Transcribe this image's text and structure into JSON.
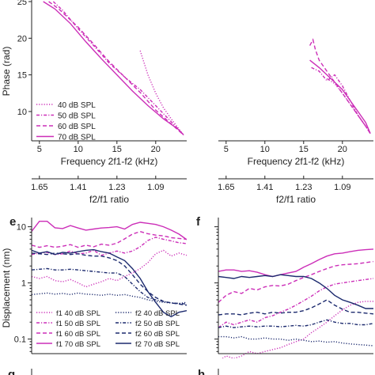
{
  "colors": {
    "magenta": "#cc2eb8",
    "navy": "#1c2a6e",
    "axis": "#222222"
  },
  "chart_data": [
    {
      "panel": "upper-left",
      "type": "line",
      "xlabel": "Frequency 2f1-f2 (kHz)",
      "ylabel": "Phase (rad)",
      "xlim": [
        4,
        24
      ],
      "ylim": [
        6,
        25
      ],
      "xticks": [
        5,
        10,
        15,
        20
      ],
      "yticks": [
        10,
        15,
        20,
        25
      ],
      "secondary_axis": {
        "label": "f2/f1 ratio",
        "ticks": [
          "1.65",
          "1.41",
          "1.23",
          "1.09"
        ],
        "tick_x": [
          5,
          10,
          15,
          20
        ]
      },
      "legend": "lower-left",
      "series": [
        {
          "name": "40 dB SPL",
          "style": "dotted",
          "x": [
            18,
            19,
            20,
            21,
            22,
            23,
            23.6
          ],
          "y": [
            18.3,
            15,
            12.5,
            10.5,
            9,
            7.6,
            6.8
          ]
        },
        {
          "name": "50 dB SPL",
          "style": "dashdot",
          "x": [
            6.8,
            8,
            10,
            12,
            14,
            16,
            18,
            20,
            22,
            23.6
          ],
          "y": [
            25,
            23.8,
            21.3,
            19,
            16.6,
            14.7,
            13,
            10.8,
            8.6,
            6.8
          ]
        },
        {
          "name": "60 dB SPL",
          "style": "dashed",
          "x": [
            6.2,
            7.5,
            10,
            12,
            14,
            16,
            18,
            20,
            22,
            23.6
          ],
          "y": [
            25,
            24,
            21.5,
            19.2,
            16.8,
            14.7,
            12.6,
            10.2,
            8.3,
            6.8
          ]
        },
        {
          "name": "70 dB SPL",
          "style": "solid",
          "x": [
            5.5,
            7,
            9,
            11,
            13,
            15,
            17,
            19,
            21,
            23,
            23.6
          ],
          "y": [
            25,
            24,
            22,
            19.5,
            17.2,
            15,
            12.8,
            10.8,
            9,
            7.5,
            6.8
          ]
        }
      ]
    },
    {
      "panel": "upper-right",
      "type": "line",
      "xlabel": "Frequency 2f1-f2 (kHz)",
      "xlim": [
        4,
        24
      ],
      "ylim": [
        6,
        25
      ],
      "xticks": [
        5,
        10,
        15,
        20
      ],
      "secondary_axis": {
        "label": "f2/f1 ratio",
        "ticks": [
          "1.65",
          "1.41",
          "1.23",
          "1.09"
        ],
        "tick_x": [
          5,
          10,
          15,
          20
        ]
      },
      "series": [
        {
          "name": "40 dB SPL",
          "style": "dotted",
          "x": [
            18,
            19,
            20,
            21,
            22,
            23,
            23.6
          ],
          "y": [
            14.5,
            13.8,
            12.5,
            11,
            9.5,
            8,
            7
          ]
        },
        {
          "name": "50 dB SPL",
          "style": "dashdot",
          "x": [
            16,
            17,
            18,
            19,
            20,
            21,
            22,
            23,
            23.6
          ],
          "y": [
            16,
            15.5,
            14.2,
            15,
            13.5,
            11.5,
            9.5,
            8,
            7
          ]
        },
        {
          "name": "60 dB SPL",
          "style": "dashed",
          "x": [
            15.8,
            16.2,
            16.5,
            17,
            18,
            19,
            20,
            21,
            22,
            23,
            23.6
          ],
          "y": [
            19,
            19.8,
            18.5,
            17,
            15.5,
            14,
            12.5,
            11,
            9.5,
            8,
            7
          ]
        },
        {
          "name": "70 dB SPL",
          "style": "solid",
          "x": [
            15.8,
            17,
            18,
            19,
            20,
            21,
            22,
            23,
            23.6
          ],
          "y": [
            17,
            16,
            15,
            14,
            13,
            11.5,
            10,
            8.5,
            7
          ]
        }
      ]
    },
    {
      "panel": "e",
      "type": "line",
      "ylabel": "Displacement (nm)",
      "yscale": "log",
      "xlim": [
        0,
        1
      ],
      "ylim": [
        0.055,
        12
      ],
      "yticks": [
        0.1,
        1,
        10
      ],
      "ytick_labels": [
        "0.1",
        "1",
        "10"
      ],
      "legend": "bottom",
      "series": [
        {
          "name": "f1 40 dB SPL",
          "color": "magenta",
          "style": "dotted",
          "x": [
            0,
            0.05,
            0.1,
            0.15,
            0.2,
            0.25,
            0.3,
            0.35,
            0.4,
            0.45,
            0.5,
            0.55,
            0.6,
            0.65,
            0.7,
            0.75,
            0.8,
            0.85,
            0.9,
            0.95,
            1
          ],
          "y": [
            1.3,
            1.2,
            1.3,
            1.1,
            1.05,
            1.15,
            1.0,
            0.85,
            0.95,
            1.05,
            1.2,
            1.1,
            1.3,
            1.5,
            1.8,
            2.3,
            3.3,
            3.8,
            3.0,
            3.4,
            3.1
          ]
        },
        {
          "name": "f1 50 dB SPL",
          "color": "magenta",
          "style": "dashdot",
          "x": [
            0,
            0.05,
            0.1,
            0.15,
            0.2,
            0.25,
            0.3,
            0.35,
            0.4,
            0.45,
            0.5,
            0.55,
            0.6,
            0.65,
            0.7,
            0.75,
            0.8,
            0.85,
            0.9,
            0.95,
            1
          ],
          "y": [
            3.2,
            3.4,
            3.5,
            3.2,
            3.3,
            3.7,
            3.3,
            3.4,
            3.8,
            3.1,
            3.4,
            3.7,
            3.4,
            3.7,
            4.4,
            5.7,
            6.5,
            6.0,
            5.6,
            5.2,
            5.0
          ]
        },
        {
          "name": "f1 60 dB SPL",
          "color": "magenta",
          "style": "dashed",
          "x": [
            0,
            0.05,
            0.1,
            0.15,
            0.2,
            0.25,
            0.3,
            0.35,
            0.4,
            0.45,
            0.5,
            0.55,
            0.6,
            0.65,
            0.7,
            0.75,
            0.8,
            0.85,
            0.9,
            0.95,
            1
          ],
          "y": [
            4.7,
            4.3,
            4.6,
            4.3,
            4.5,
            4.8,
            4.3,
            4.7,
            4.4,
            4.9,
            4.7,
            5.1,
            6.1,
            7.4,
            8.2,
            7.5,
            7.1,
            6.9,
            6.4,
            6.2,
            6.0
          ]
        },
        {
          "name": "f1 70 dB SPL",
          "color": "magenta",
          "style": "solid",
          "x": [
            0,
            0.05,
            0.1,
            0.15,
            0.2,
            0.25,
            0.3,
            0.35,
            0.4,
            0.45,
            0.5,
            0.55,
            0.6,
            0.65,
            0.7,
            0.75,
            0.8,
            0.85,
            0.9,
            0.95,
            1
          ],
          "y": [
            8.3,
            12.5,
            12.5,
            9.6,
            9.3,
            10.5,
            9.5,
            8.7,
            9.1,
            9.5,
            9.7,
            10.0,
            9.1,
            11.0,
            12.0,
            11.5,
            11.0,
            10.0,
            8.7,
            7.4,
            5.9
          ]
        },
        {
          "name": "f2 40 dB SPL",
          "color": "navy",
          "style": "dotted",
          "x": [
            0,
            0.05,
            0.1,
            0.15,
            0.2,
            0.25,
            0.3,
            0.35,
            0.4,
            0.45,
            0.5,
            0.55,
            0.6,
            0.65,
            0.7,
            0.75,
            0.8,
            0.85,
            0.9,
            0.95,
            1
          ],
          "y": [
            0.62,
            0.64,
            0.66,
            0.63,
            0.65,
            0.62,
            0.66,
            0.63,
            0.62,
            0.6,
            0.63,
            0.6,
            0.62,
            0.58,
            0.55,
            0.5,
            0.47,
            0.45,
            0.44,
            0.43,
            0.45
          ]
        },
        {
          "name": "f2 50 dB SPL",
          "color": "navy",
          "style": "dashdot",
          "x": [
            0,
            0.05,
            0.1,
            0.15,
            0.2,
            0.25,
            0.3,
            0.35,
            0.4,
            0.45,
            0.5,
            0.55,
            0.6,
            0.65,
            0.7,
            0.75,
            0.8,
            0.85,
            0.9,
            0.95,
            1
          ],
          "y": [
            1.7,
            1.75,
            1.8,
            1.7,
            1.7,
            1.75,
            1.7,
            1.65,
            1.6,
            1.55,
            1.5,
            1.5,
            1.3,
            0.95,
            0.7,
            0.55,
            0.5,
            0.47,
            0.44,
            0.43,
            0.42
          ]
        },
        {
          "name": "f2 60 dB SPL",
          "color": "navy",
          "style": "dashed",
          "x": [
            0,
            0.05,
            0.1,
            0.15,
            0.2,
            0.25,
            0.3,
            0.35,
            0.4,
            0.45,
            0.5,
            0.55,
            0.6,
            0.65,
            0.7,
            0.75,
            0.8,
            0.85,
            0.9,
            0.95,
            1
          ],
          "y": [
            3.4,
            3.3,
            3.2,
            3.4,
            3.3,
            3.2,
            3.3,
            3.1,
            3.0,
            3.0,
            2.8,
            2.5,
            2.0,
            1.4,
            0.95,
            0.7,
            0.55,
            0.47,
            0.44,
            0.42,
            0.4
          ]
        },
        {
          "name": "f2 70 dB SPL",
          "color": "navy",
          "style": "solid",
          "x": [
            0,
            0.05,
            0.1,
            0.15,
            0.2,
            0.25,
            0.3,
            0.35,
            0.4,
            0.45,
            0.5,
            0.55,
            0.6,
            0.65,
            0.7,
            0.75,
            0.8,
            0.85,
            0.9,
            0.95,
            1
          ],
          "y": [
            3.8,
            3.4,
            3.6,
            3.2,
            3.5,
            3.4,
            3.6,
            3.8,
            3.9,
            3.6,
            3.4,
            2.9,
            2.5,
            1.8,
            1.2,
            0.7,
            0.45,
            0.3,
            0.25,
            0.3,
            0.32
          ]
        }
      ]
    },
    {
      "panel": "f",
      "type": "line",
      "yscale": "log",
      "xlim": [
        0,
        1
      ],
      "ylim": [
        0.055,
        12
      ],
      "series": [
        {
          "name": "f1 40 dB SPL",
          "color": "magenta",
          "style": "dotted",
          "x": [
            0,
            0.05,
            0.1,
            0.15,
            0.2,
            0.25,
            0.3,
            0.35,
            0.4,
            0.45,
            0.5,
            0.55,
            0.6,
            0.65,
            0.7,
            0.75,
            0.8,
            0.85,
            0.9,
            0.95,
            1
          ],
          "y": [
            0.04,
            0.05,
            0.045,
            0.05,
            0.06,
            0.055,
            0.06,
            0.065,
            0.07,
            0.08,
            0.09,
            0.1,
            0.13,
            0.16,
            0.2,
            0.26,
            0.33,
            0.4,
            0.45,
            0.47,
            0.47
          ]
        },
        {
          "name": "f1 50 dB SPL",
          "color": "magenta",
          "style": "dashdot",
          "x": [
            0,
            0.05,
            0.1,
            0.15,
            0.2,
            0.25,
            0.3,
            0.35,
            0.4,
            0.45,
            0.5,
            0.55,
            0.6,
            0.65,
            0.7,
            0.75,
            0.8,
            0.85,
            0.9,
            0.95,
            1
          ],
          "y": [
            0.16,
            0.2,
            0.18,
            0.2,
            0.22,
            0.2,
            0.24,
            0.26,
            0.3,
            0.34,
            0.4,
            0.48,
            0.58,
            0.72,
            0.85,
            0.95,
            1.0,
            1.05,
            1.1,
            1.15,
            1.2
          ]
        },
        {
          "name": "f1 60 dB SPL",
          "color": "magenta",
          "style": "dashed",
          "x": [
            0,
            0.05,
            0.1,
            0.15,
            0.2,
            0.25,
            0.3,
            0.35,
            0.4,
            0.45,
            0.5,
            0.55,
            0.6,
            0.65,
            0.7,
            0.75,
            0.8,
            0.85,
            0.9,
            0.95,
            1
          ],
          "y": [
            0.45,
            0.6,
            0.7,
            0.65,
            0.8,
            0.75,
            0.85,
            0.9,
            0.88,
            0.95,
            1.1,
            1.25,
            1.4,
            1.6,
            1.8,
            2.0,
            2.1,
            2.15,
            2.2,
            2.3,
            2.4
          ]
        },
        {
          "name": "f1 70 dB SPL",
          "color": "magenta",
          "style": "solid",
          "x": [
            0,
            0.05,
            0.1,
            0.15,
            0.2,
            0.25,
            0.3,
            0.35,
            0.4,
            0.45,
            0.5,
            0.55,
            0.6,
            0.65,
            0.7,
            0.75,
            0.8,
            0.85,
            0.9,
            0.95,
            1
          ],
          "y": [
            1.6,
            1.7,
            1.7,
            1.6,
            1.65,
            1.55,
            1.4,
            1.3,
            1.4,
            1.5,
            1.6,
            1.9,
            2.2,
            2.6,
            3.0,
            3.3,
            3.4,
            3.6,
            3.8,
            3.9,
            4.0
          ]
        },
        {
          "name": "f2 40 dB SPL",
          "color": "navy",
          "style": "dotted",
          "x": [
            0,
            0.05,
            0.1,
            0.15,
            0.2,
            0.25,
            0.3,
            0.35,
            0.4,
            0.45,
            0.5,
            0.55,
            0.6,
            0.65,
            0.7,
            0.75,
            0.8,
            0.85,
            0.9,
            0.95,
            1
          ],
          "y": [
            0.11,
            0.11,
            0.105,
            0.11,
            0.1,
            0.1,
            0.105,
            0.1,
            0.1,
            0.095,
            0.1,
            0.095,
            0.09,
            0.092,
            0.088,
            0.09,
            0.085,
            0.082,
            0.08,
            0.078,
            0.076
          ]
        },
        {
          "name": "f2 50 dB SPL",
          "color": "navy",
          "style": "dashdot",
          "x": [
            0,
            0.05,
            0.1,
            0.15,
            0.2,
            0.25,
            0.3,
            0.35,
            0.4,
            0.45,
            0.5,
            0.55,
            0.6,
            0.65,
            0.7,
            0.75,
            0.8,
            0.85,
            0.9,
            0.95,
            1
          ],
          "y": [
            0.16,
            0.17,
            0.16,
            0.165,
            0.17,
            0.165,
            0.17,
            0.17,
            0.165,
            0.17,
            0.175,
            0.17,
            0.18,
            0.2,
            0.22,
            0.2,
            0.19,
            0.19,
            0.18,
            0.18,
            0.19
          ]
        },
        {
          "name": "f2 60 dB SPL",
          "color": "navy",
          "style": "dashed",
          "x": [
            0,
            0.05,
            0.1,
            0.15,
            0.2,
            0.25,
            0.3,
            0.35,
            0.4,
            0.45,
            0.5,
            0.55,
            0.6,
            0.65,
            0.7,
            0.75,
            0.8,
            0.85,
            0.9,
            0.95,
            1
          ],
          "y": [
            0.27,
            0.28,
            0.28,
            0.27,
            0.29,
            0.3,
            0.28,
            0.3,
            0.29,
            0.3,
            0.3,
            0.32,
            0.36,
            0.42,
            0.5,
            0.4,
            0.34,
            0.3,
            0.3,
            0.29,
            0.28
          ]
        },
        {
          "name": "f2 70 dB SPL",
          "color": "navy",
          "style": "solid",
          "x": [
            0,
            0.05,
            0.1,
            0.15,
            0.2,
            0.25,
            0.3,
            0.35,
            0.4,
            0.45,
            0.5,
            0.55,
            0.6,
            0.65,
            0.7,
            0.75,
            0.8,
            0.85,
            0.9,
            0.95,
            1
          ],
          "y": [
            1.3,
            1.25,
            1.2,
            1.3,
            1.25,
            1.3,
            1.35,
            1.3,
            1.4,
            1.35,
            1.3,
            1.3,
            1.2,
            1.0,
            0.8,
            0.6,
            0.5,
            0.45,
            0.4,
            0.35,
            0.35
          ]
        }
      ]
    }
  ],
  "panel_labels": {
    "e": "e",
    "f": "f",
    "g": "g",
    "h": "h"
  }
}
